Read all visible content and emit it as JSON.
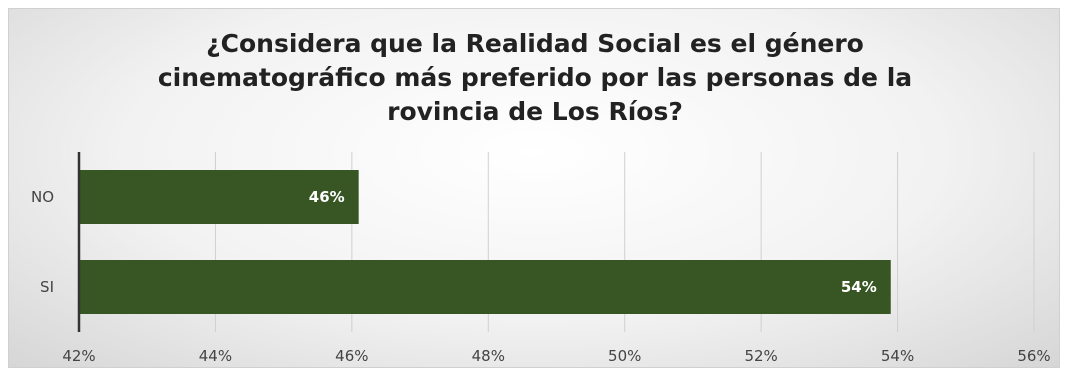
{
  "chart_data": {
    "type": "bar",
    "orientation": "horizontal",
    "title": "¿Considera que la Realidad Social es el género cinematográfico más preferido por las personas de la rovincia de Los Ríos?",
    "title_lines": [
      "¿Considera que la Realidad Social es el género",
      "cinematográfico más preferido por las personas de la",
      "rovincia de Los Ríos?"
    ],
    "categories": [
      "NO",
      "SI"
    ],
    "values": [
      46.1,
      53.9
    ],
    "data_labels": [
      "46%",
      "54%"
    ],
    "xlim": [
      42,
      56
    ],
    "x_ticks": [
      42,
      44,
      46,
      48,
      50,
      52,
      54,
      56
    ],
    "x_tick_labels": [
      "42%",
      "44%",
      "46%",
      "48%",
      "50%",
      "52%",
      "54%",
      "56%"
    ],
    "xlabel": "",
    "ylabel": "",
    "grid": "vertical",
    "bar_color": "#375623",
    "legend": "none"
  }
}
